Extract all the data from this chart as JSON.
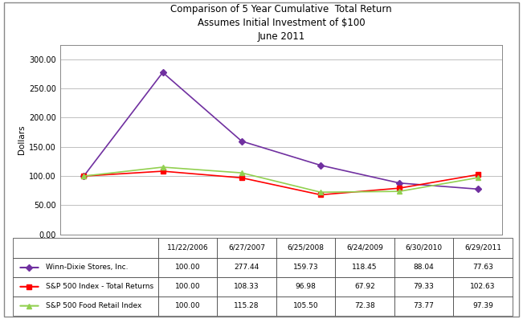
{
  "title_line1": "Comparison of 5 Year Cumulative  Total Return",
  "title_line2": "Assumes Initial Investment of $100",
  "title_line3": "June 2011",
  "ylabel": "Dollars",
  "x_labels": [
    "11/22/2006",
    "6/27/2007",
    "6/25/2008",
    "6/24/2009",
    "6/30/2010",
    "6/29/2011"
  ],
  "series": [
    {
      "label": "Winn-Dixie Stores, Inc.",
      "values": [
        100.0,
        277.44,
        159.73,
        118.45,
        88.04,
        77.63
      ],
      "color": "#7030A0",
      "marker": "D",
      "linewidth": 1.2
    },
    {
      "label": "S&P 500 Index - Total Returns",
      "values": [
        100.0,
        108.33,
        96.98,
        67.92,
        79.33,
        102.63
      ],
      "color": "#FF0000",
      "marker": "s",
      "linewidth": 1.2
    },
    {
      "label": "S&P 500 Food Retail Index",
      "values": [
        100.0,
        115.28,
        105.5,
        72.38,
        73.77,
        97.39
      ],
      "color": "#92D050",
      "marker": "^",
      "linewidth": 1.2
    }
  ],
  "ylim": [
    0.0,
    325.0
  ],
  "yticks": [
    0.0,
    50.0,
    100.0,
    150.0,
    200.0,
    250.0,
    300.0
  ],
  "background_color": "#FFFFFF",
  "plot_bg_color": "#FFFFFF",
  "grid_color": "#C0C0C0",
  "title_fontsize": 8.5,
  "axis_label_fontsize": 7.5,
  "tick_fontsize": 7,
  "table_fontsize": 6.5,
  "outer_border_color": "#808080"
}
